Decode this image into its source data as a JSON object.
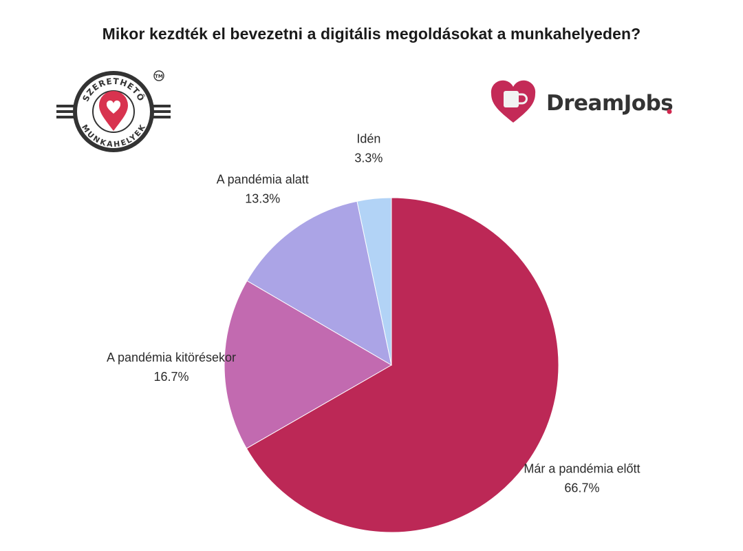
{
  "title": "Mikor kezdték el bevezetni a digitális megoldásokat a munkahelyeden?",
  "logos": {
    "left": {
      "text_top": "SZERETHETŐ",
      "text_bottom": "MUNKAHELYEK",
      "mark": "TM"
    },
    "right": {
      "text": "DreamJobs"
    }
  },
  "colors": {
    "brand": "#bd2956",
    "dark": "#333333"
  },
  "chart_data": {
    "type": "pie",
    "start": "12 o'clock",
    "direction": "clockwise",
    "slices": [
      {
        "label": "Már a pandémia előtt",
        "value": 66.7,
        "display": "66.7%",
        "color": "#bc2856"
      },
      {
        "label": "A pandémia kitörésekor",
        "value": 16.7,
        "display": "16.7%",
        "color": "#c26ab0"
      },
      {
        "label": "A pandémia alatt",
        "value": 13.3,
        "display": "13.3%",
        "color": "#aba4e6"
      },
      {
        "label": "Idén",
        "value": 3.3,
        "display": "3.3%",
        "color": "#b2d3f6"
      }
    ]
  }
}
